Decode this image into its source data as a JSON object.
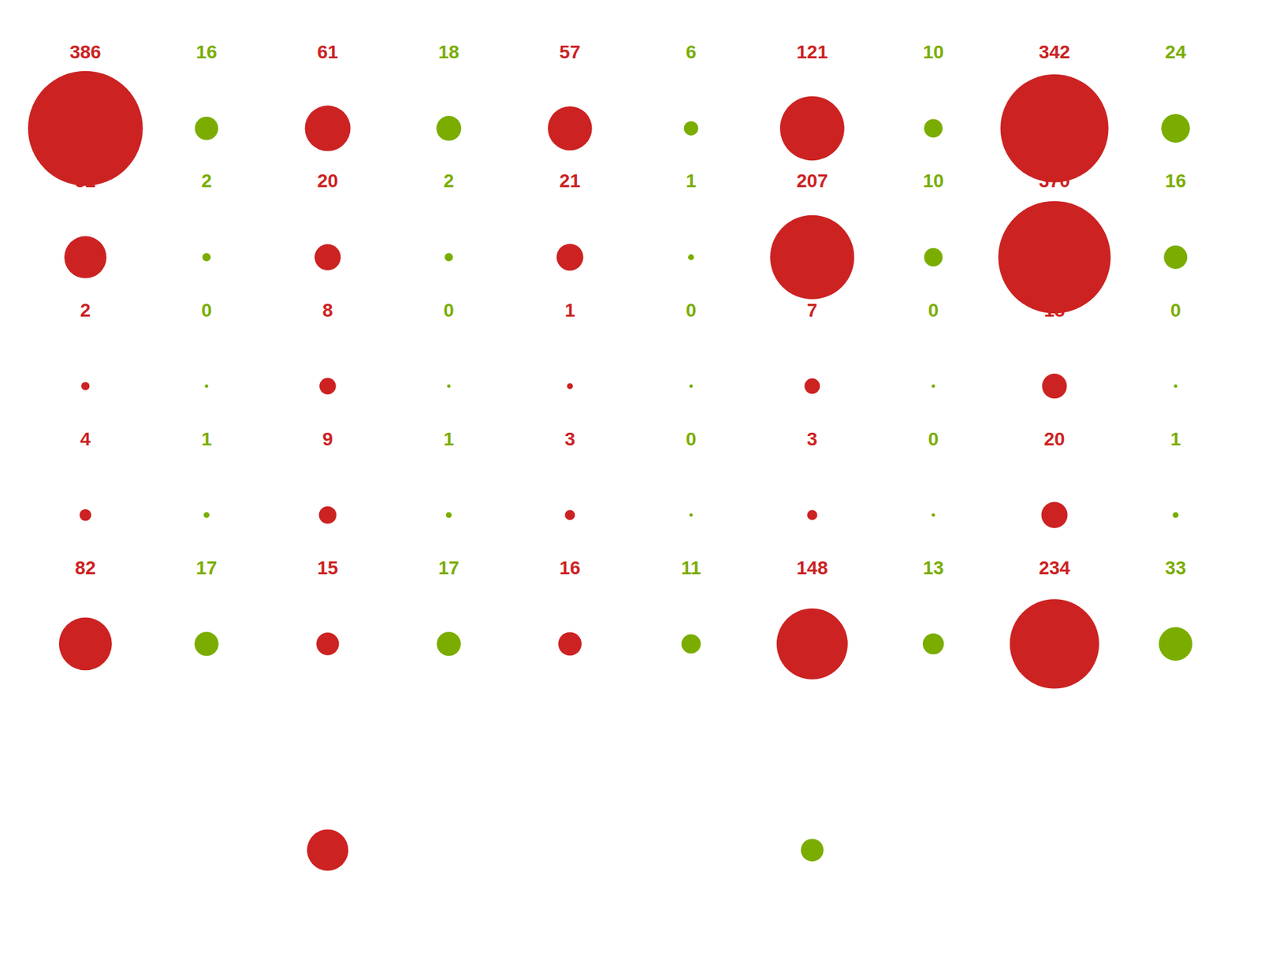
{
  "chart_data": {
    "type": "bubble",
    "categories": [
      null,
      null,
      null,
      null,
      null
    ],
    "series": [
      {
        "color": "#cc2222",
        "values": [
          [
            386,
            61,
            57,
            121,
            342
          ],
          [
            52,
            20,
            21,
            207,
            370
          ],
          [
            2,
            8,
            1,
            7,
            18
          ],
          [
            4,
            9,
            3,
            3,
            20
          ],
          [
            82,
            15,
            16,
            148,
            234
          ]
        ],
        "legend_value": 50
      },
      {
        "color": "#7aad00",
        "values": [
          [
            16,
            18,
            6,
            10,
            24
          ],
          [
            2,
            2,
            1,
            10,
            16
          ],
          [
            0,
            0,
            0,
            0,
            0
          ],
          [
            1,
            1,
            0,
            0,
            1
          ],
          [
            17,
            17,
            11,
            13,
            33
          ]
        ],
        "legend_value": 15
      }
    ],
    "size_max": 386,
    "data_labels": true,
    "tick_labels": false,
    "grid": false
  }
}
